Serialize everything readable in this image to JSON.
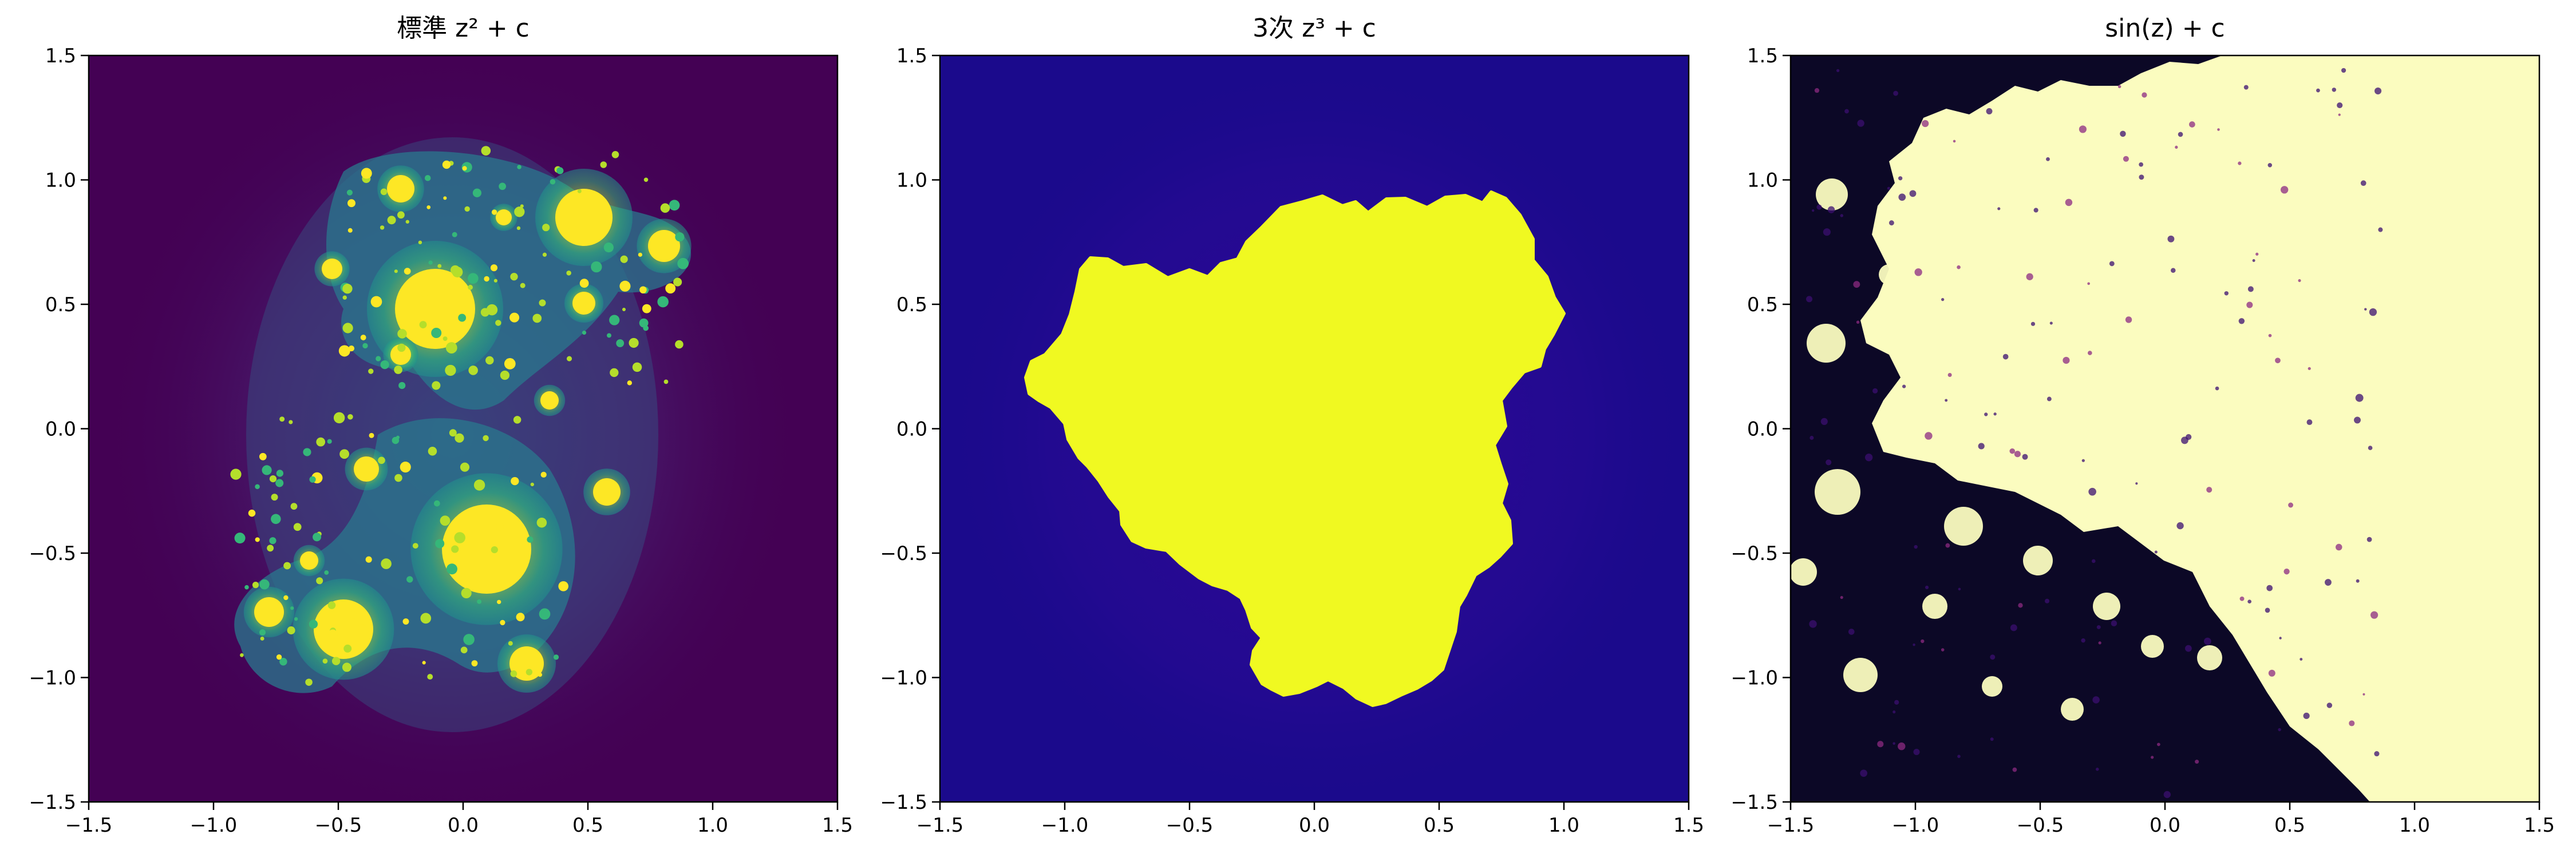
{
  "chart_data": [
    {
      "type": "heatmap",
      "title": "標準 z² + c",
      "colormap": "viridis",
      "xlim": [
        -1.5,
        1.5
      ],
      "ylim": [
        -1.5,
        1.5
      ],
      "x_ticks": [
        -1.5,
        -1.0,
        -0.5,
        0.0,
        0.5,
        1.0,
        1.5
      ],
      "y_ticks": [
        -1.5,
        -1.0,
        -0.5,
        0.0,
        0.5,
        1.0,
        1.5
      ],
      "x_tick_labels": [
        "−1.5",
        "−1.0",
        "−0.5",
        "0.0",
        "0.5",
        "1.0",
        "1.5"
      ],
      "y_tick_labels": [
        "−1.5",
        "−1.0",
        "−0.5",
        "0.0",
        "0.5",
        "1.0",
        "1.5"
      ],
      "background_color": "#440154",
      "set_color": "#fde725",
      "grid": false
    },
    {
      "type": "heatmap",
      "title": "3次 z³ + c",
      "colormap": "plasma",
      "xlim": [
        -1.5,
        1.5
      ],
      "ylim": [
        -1.5,
        1.5
      ],
      "x_ticks": [
        -1.5,
        -1.0,
        -0.5,
        0.0,
        0.5,
        1.0,
        1.5
      ],
      "y_ticks": [
        -1.5,
        -1.0,
        -0.5,
        0.0,
        0.5,
        1.0,
        1.5
      ],
      "x_tick_labels": [
        "−1.5",
        "−1.0",
        "−0.5",
        "0.0",
        "0.5",
        "1.0",
        "1.5"
      ],
      "y_tick_labels": [
        "−1.5",
        "−1.0",
        "−0.5",
        "0.0",
        "0.5",
        "1.0",
        "1.5"
      ],
      "background_color": "#1b0a8c",
      "set_color": "#f0f921",
      "grid": false
    },
    {
      "type": "heatmap",
      "title": "sin(z) + c",
      "colormap": "magma",
      "xlim": [
        -1.5,
        1.5
      ],
      "ylim": [
        -1.5,
        1.5
      ],
      "x_ticks": [
        -1.5,
        -1.0,
        -0.5,
        0.0,
        0.5,
        1.0,
        1.5
      ],
      "y_ticks": [
        -1.5,
        -1.0,
        -0.5,
        0.0,
        0.5,
        1.0,
        1.5
      ],
      "x_tick_labels": [
        "−1.5",
        "−1.0",
        "−0.5",
        "0.0",
        "0.5",
        "1.0",
        "1.5"
      ],
      "y_tick_labels": [
        "−1.5",
        "−1.0",
        "−0.5",
        "0.0",
        "0.5",
        "1.0",
        "1.5"
      ],
      "background_color": "#fbfcbf",
      "set_color": "#000004",
      "grid": false
    }
  ]
}
